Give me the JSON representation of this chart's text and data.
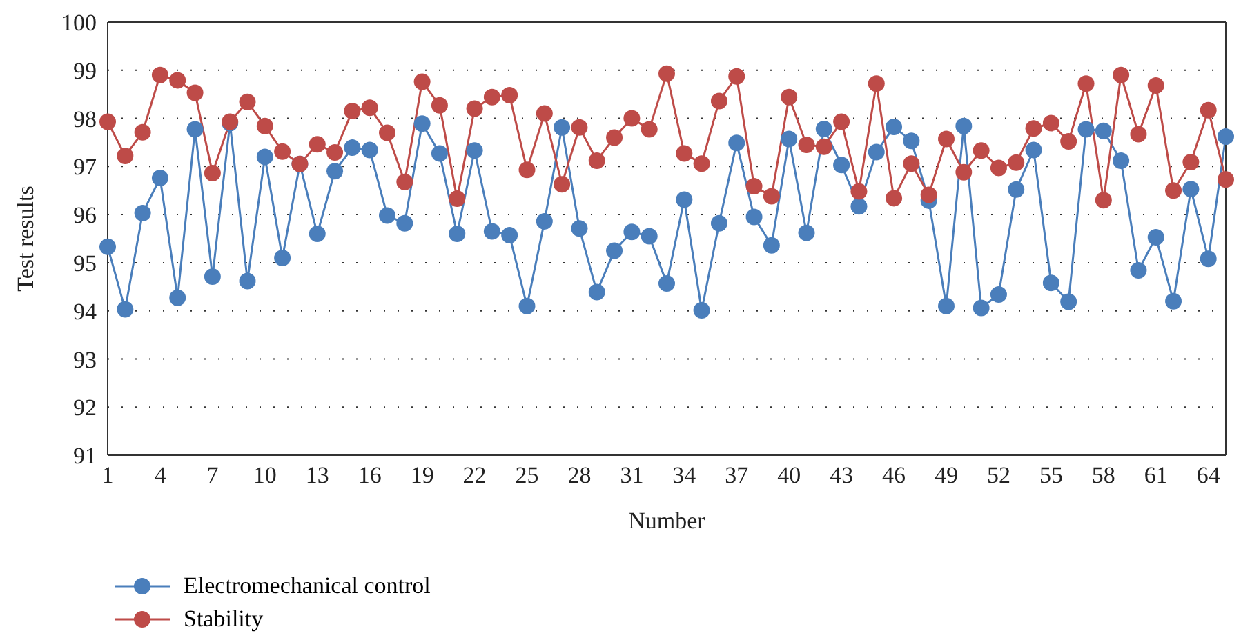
{
  "chart_data": {
    "type": "line",
    "xlabel": "Number",
    "ylabel": "Test results",
    "categories": [
      "1",
      null,
      null,
      "4",
      null,
      null,
      "7",
      null,
      null,
      "10",
      null,
      null,
      "13",
      null,
      null,
      "16",
      null,
      null,
      "19",
      null,
      null,
      "22",
      null,
      null,
      "25",
      null,
      null,
      "28",
      null,
      null,
      "31",
      null,
      null,
      "34",
      null,
      null,
      "37",
      null,
      null,
      "40",
      null,
      null,
      "43",
      null,
      null,
      "46",
      null,
      null,
      "49",
      null,
      null,
      "52",
      null,
      null,
      "55",
      null,
      null,
      "58",
      null,
      null,
      "61",
      null,
      null,
      "64",
      null
    ],
    "series": [
      {
        "name": "Electromechanical control",
        "color": "#4a7ebb",
        "values": [
          95.33,
          94.03,
          96.03,
          96.76,
          94.27,
          97.77,
          94.71,
          97.9,
          94.62,
          97.2,
          95.1,
          97.05,
          95.6,
          96.9,
          97.39,
          97.34,
          95.98,
          95.82,
          97.89,
          97.27,
          95.6,
          97.33,
          95.65,
          95.57,
          94.1,
          95.86,
          97.81,
          95.71,
          94.39,
          95.25,
          95.64,
          95.55,
          94.57,
          96.31,
          94.01,
          95.82,
          97.49,
          95.95,
          95.36,
          97.57,
          95.62,
          97.78,
          97.03,
          96.17,
          97.3,
          97.82,
          97.53,
          96.29,
          94.1,
          97.84,
          94.06,
          94.34,
          96.52,
          97.34,
          94.58,
          94.19,
          97.77,
          97.74,
          97.12,
          94.84,
          95.53,
          94.2,
          96.53,
          95.08,
          97.62
        ]
      },
      {
        "name": "Stability",
        "color": "#be4b48",
        "values": [
          97.93,
          97.22,
          97.71,
          98.9,
          98.79,
          98.53,
          96.86,
          97.93,
          98.34,
          97.84,
          97.31,
          97.05,
          97.46,
          97.29,
          98.15,
          98.22,
          97.7,
          96.68,
          98.76,
          98.27,
          96.33,
          98.2,
          98.44,
          98.48,
          96.93,
          98.1,
          96.63,
          97.81,
          97.12,
          97.6,
          98.0,
          97.77,
          98.93,
          97.27,
          97.06,
          98.36,
          98.87,
          96.59,
          96.38,
          98.44,
          97.45,
          97.41,
          97.93,
          96.48,
          98.72,
          96.34,
          97.06,
          96.41,
          97.57,
          96.88,
          97.33,
          96.97,
          97.08,
          97.79,
          97.9,
          97.52,
          98.72,
          96.3,
          98.9,
          97.67,
          98.68,
          96.5,
          97.09,
          98.17,
          96.73
        ]
      }
    ],
    "ylim": [
      91,
      100
    ],
    "yticks": [
      91,
      92,
      93,
      94,
      95,
      96,
      97,
      98,
      99,
      100
    ],
    "grid": "y",
    "marker": "circle",
    "line_style": "solid",
    "legend": "bottom left"
  }
}
